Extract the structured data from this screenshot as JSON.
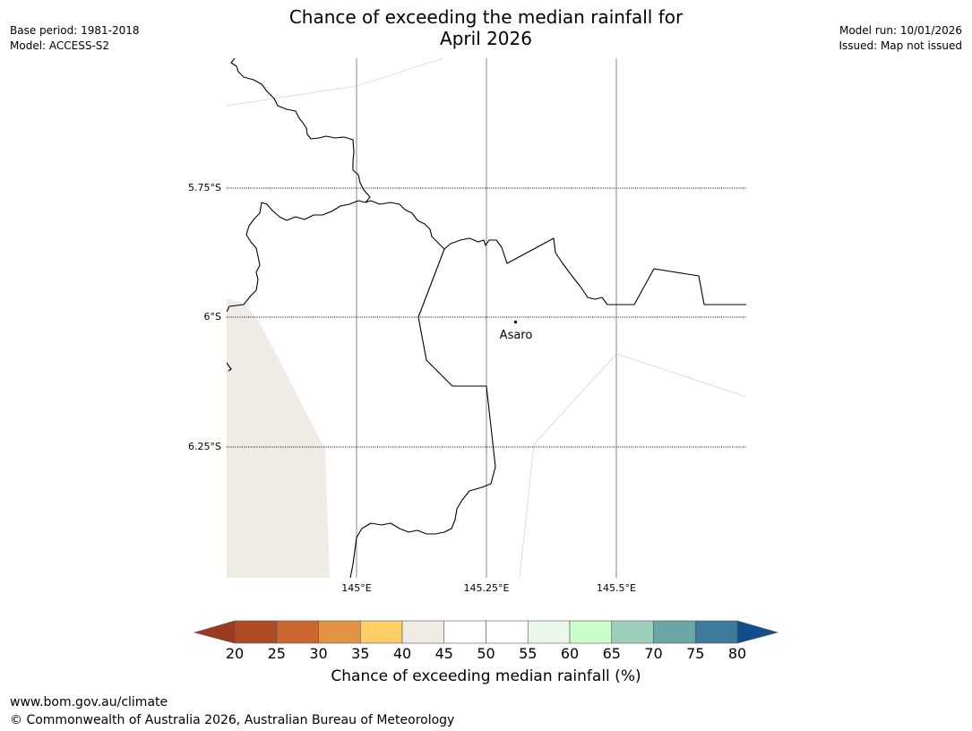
{
  "title": {
    "line1": "Chance of exceeding the median rainfall for",
    "line2": "April 2026"
  },
  "meta_left": {
    "base_period": "Base period: 1981-2018",
    "model": "Model: ACCESS-S2"
  },
  "meta_right": {
    "model_run": "Model run: 10/01/2026",
    "issued": "Issued: Map not issued"
  },
  "map": {
    "latitude_labels": [
      "5.75°S",
      "6°S",
      "6.25°S"
    ],
    "longitude_labels": [
      "145°E",
      "145.25°E",
      "145.5°E"
    ],
    "place": "Asaro",
    "land_fill_color": "#f0ebe4",
    "land_fill_category": "40-45"
  },
  "colorbar": {
    "title": "Chance of exceeding median rainfall (%)",
    "ticks": [
      "20",
      "25",
      "30",
      "35",
      "40",
      "45",
      "50",
      "55",
      "60",
      "65",
      "70",
      "75",
      "80"
    ],
    "under_color": "#9b3a22",
    "over_color": "#134e8c",
    "colors": [
      "#b04a25",
      "#cc6632",
      "#e29444",
      "#fece66",
      "#f0ebe4",
      "#ffffff",
      "#ffffff",
      "#eaf7ea",
      "#cbfecb",
      "#9ccfb9",
      "#6ba5a6",
      "#3e7a9c"
    ]
  },
  "footer": {
    "url": "www.bom.gov.au/climate",
    "copyright": "© Commonwealth of Australia 2026, Australian Bureau of Meteorology"
  }
}
